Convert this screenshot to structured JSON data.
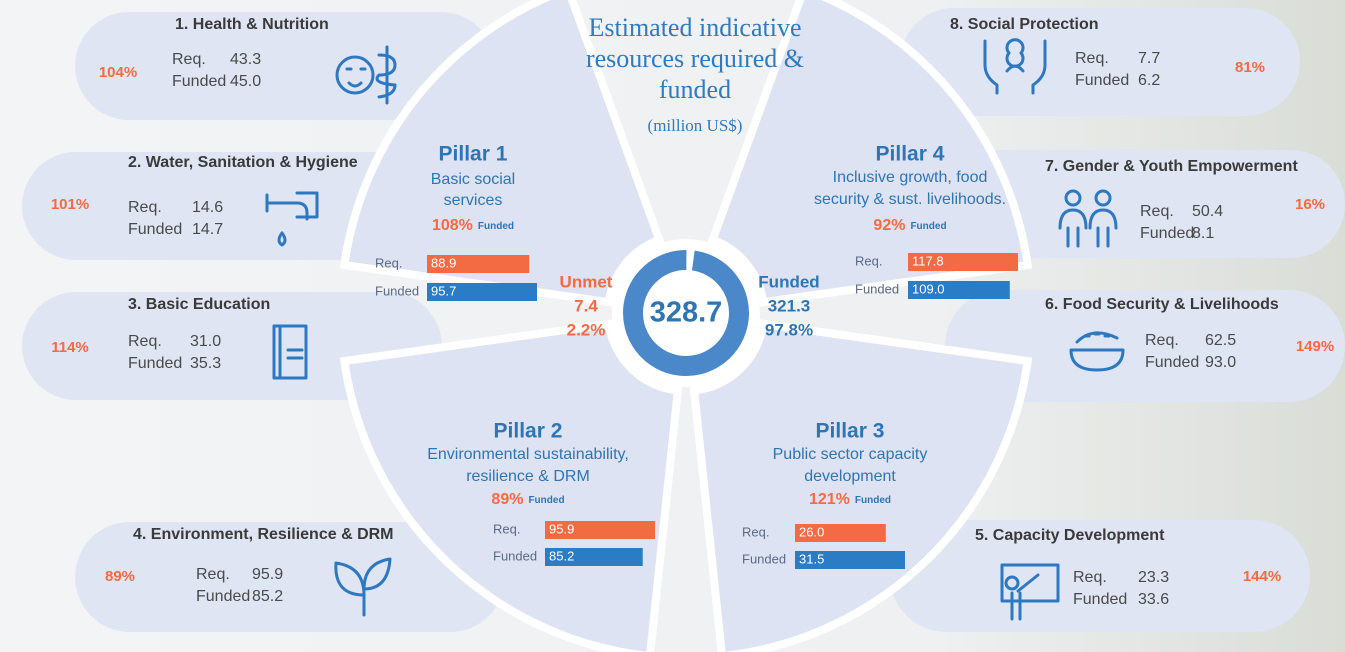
{
  "title": [
    "Estimated indicative",
    "resources required &",
    "funded"
  ],
  "subtitle": "(million US$)",
  "labels": {
    "req": "Req.",
    "funded": "Funded"
  },
  "total": 328.7,
  "unmet": {
    "label": "Unmet",
    "value": 7.4,
    "percent": {
      "value": 2.2,
      "label": "2.2%"
    }
  },
  "funded": {
    "value": 321.3,
    "percent": {
      "value": 97.8,
      "label": "97.8%"
    }
  },
  "pillars": [
    {
      "name": "Pillar 1",
      "description": [
        "Basic social",
        "services"
      ],
      "percent": {
        "value": 108,
        "label": "108%"
      },
      "required": 88.9,
      "funded": 95.7
    },
    {
      "name": "Pillar 2",
      "description": [
        "Environmental sustainability,",
        "resilience & DRM"
      ],
      "percent": {
        "value": 89,
        "label": "89%"
      },
      "required": 95.9,
      "funded": 85.2
    },
    {
      "name": "Pillar 3",
      "description": [
        "Public sector capacity",
        "development"
      ],
      "percent": {
        "value": 121,
        "label": "121%"
      },
      "required": {
        "value": 26,
        "label": "26.0"
      },
      "funded": 31.5
    },
    {
      "name": "Pillar 4",
      "description": [
        "Inclusive growth, food",
        "security & sust. livelihoods."
      ],
      "percent": {
        "value": 92,
        "label": "92%"
      },
      "required": 117.8,
      "funded": {
        "value": 109,
        "label": "109.0"
      }
    }
  ],
  "sectors": [
    {
      "name": "1. Health & Nutrition",
      "percent": {
        "value": 104,
        "label": "104%"
      },
      "required": 43.3,
      "funded": {
        "value": 45,
        "label": "45.0"
      }
    },
    {
      "name": "2. Water, Sanitation & Hygiene",
      "percent": {
        "value": 101,
        "label": "101%"
      },
      "required": 14.6,
      "funded": 14.7
    },
    {
      "name": "3. Basic Education",
      "percent": {
        "value": 114,
        "label": "114%"
      },
      "required": {
        "value": 31,
        "label": "31.0"
      },
      "funded": 35.3
    },
    {
      "name": "4. Environment, Resilience & DRM",
      "percent": {
        "value": 89,
        "label": "89%"
      },
      "required": 95.9,
      "funded": 85.2
    },
    {
      "name": "5. Capacity Development",
      "percent": {
        "value": 144,
        "label": "144%"
      },
      "required": 23.3,
      "funded": 33.6
    },
    {
      "name": "6. Food Security & Livelihoods",
      "percent": {
        "value": 149,
        "label": "149%"
      },
      "required": 62.5,
      "funded": {
        "value": 93,
        "label": "93.0"
      }
    },
    {
      "name": "7. Gender & Youth Empowerment",
      "percent": {
        "value": 16,
        "label": "16%"
      },
      "required": 50.4,
      "funded": 8.1
    },
    {
      "name": "8. Social Protection",
      "percent": {
        "value": 81,
        "label": "81%"
      },
      "required": 7.7,
      "funded": 6.2
    }
  ]
}
